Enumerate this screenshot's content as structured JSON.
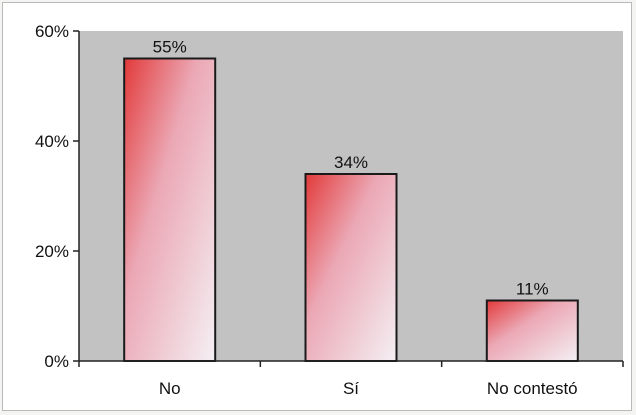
{
  "chart_data": {
    "type": "bar",
    "categories": [
      "No",
      "Sí",
      "No contestó"
    ],
    "values": [
      55,
      34,
      11
    ],
    "data_labels": [
      "55%",
      "34%",
      "11%"
    ],
    "ylim": [
      0,
      60
    ],
    "yticks": [
      0,
      20,
      40,
      60
    ],
    "ytick_labels": [
      "0%",
      "20%",
      "40%",
      "60%"
    ],
    "title": "",
    "xlabel": "",
    "ylabel": "",
    "grid": false,
    "legend": "none",
    "colors": {
      "plot_background": "#c2c2c2",
      "bar_gradient_start": "#e23a3a",
      "bar_gradient_end": "#f4f0f4",
      "bar_border": "#1a1a1a"
    }
  }
}
